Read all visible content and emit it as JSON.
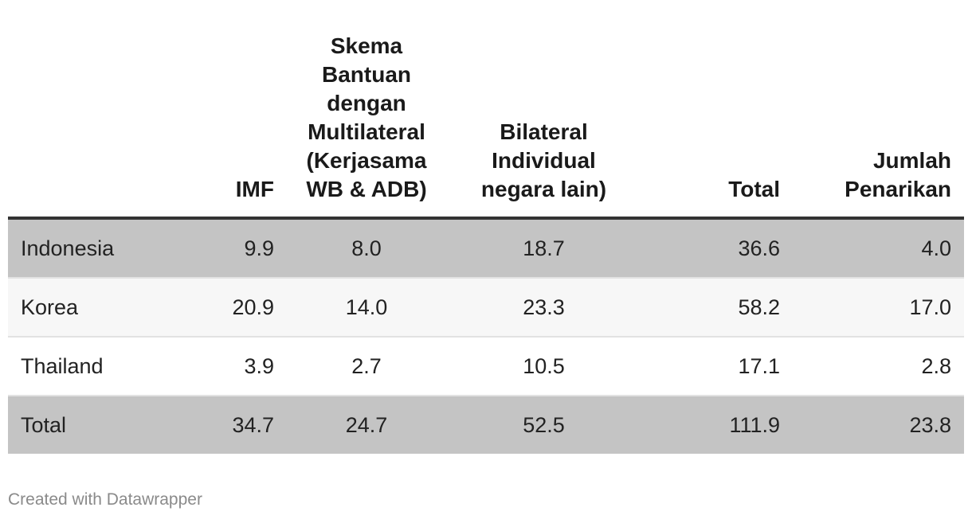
{
  "chart_data": {
    "type": "table",
    "columns": [
      "",
      "IMF",
      "Skema Bantuan dengan Multilateral (Kerjasama WB & ADB)",
      "Bilateral Individual negara lain)",
      "Total",
      "Jumlah Penarikan"
    ],
    "rows": [
      {
        "label": "Indonesia",
        "values": [
          "9.9",
          "8.0",
          "18.7",
          "36.6",
          "4.0"
        ]
      },
      {
        "label": "Korea",
        "values": [
          "20.9",
          "14.0",
          "23.3",
          "58.2",
          "17.0"
        ]
      },
      {
        "label": "Thailand",
        "values": [
          "3.9",
          "2.7",
          "10.5",
          "17.1",
          "2.8"
        ]
      },
      {
        "label": "Total",
        "values": [
          "34.7",
          "24.7",
          "52.5",
          "111.9",
          "23.8"
        ]
      }
    ],
    "row_shading": [
      "#c4c4c4",
      "#f7f7f7",
      "#ffffff",
      "#c4c4c4"
    ]
  },
  "footer": {
    "credit": "Created with Datawrapper"
  }
}
